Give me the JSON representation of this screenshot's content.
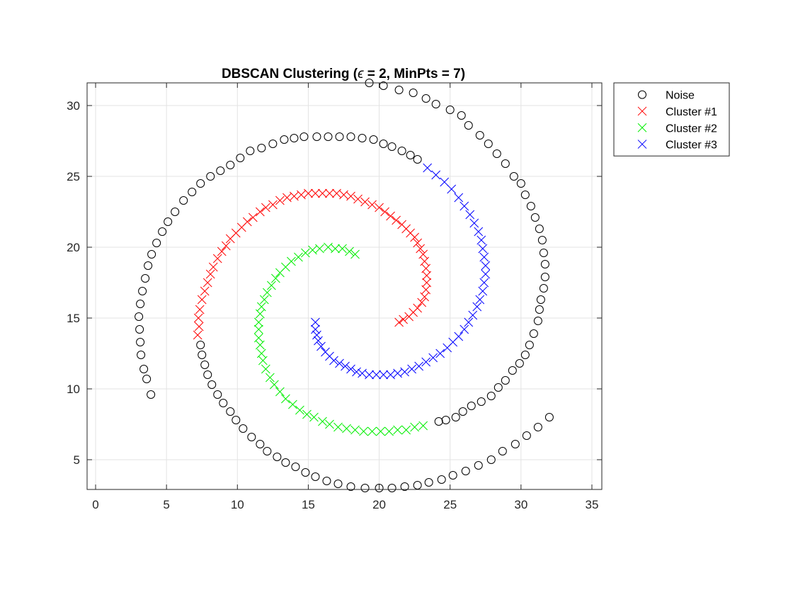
{
  "chart_data": {
    "type": "scatter",
    "title_prefix": "DBSCAN Clustering (",
    "title_symbol": "ϵ",
    "title_suffix": " = 2, MinPts = 7)",
    "xlabel": "",
    "ylabel": "",
    "xlim": [
      -0.6,
      35.7
    ],
    "ylim": [
      2.9,
      31.6
    ],
    "xticks": [
      0,
      5,
      10,
      15,
      20,
      25,
      30,
      35
    ],
    "yticks": [
      5,
      10,
      15,
      20,
      25,
      30
    ],
    "grid": true,
    "legend_position": "outside-top-right",
    "series": [
      {
        "name": "Noise",
        "marker": "circle",
        "color": "#000000",
        "points": [
          [
            3.9,
            9.6
          ],
          [
            3.6,
            10.7
          ],
          [
            3.4,
            11.4
          ],
          [
            3.2,
            12.4
          ],
          [
            3.15,
            13.3
          ],
          [
            3.1,
            14.2
          ],
          [
            3.05,
            15.1
          ],
          [
            3.15,
            16.0
          ],
          [
            3.3,
            16.9
          ],
          [
            3.5,
            17.8
          ],
          [
            3.7,
            18.7
          ],
          [
            3.95,
            19.5
          ],
          [
            4.3,
            20.3
          ],
          [
            4.7,
            21.1
          ],
          [
            5.1,
            21.8
          ],
          [
            5.6,
            22.5
          ],
          [
            6.2,
            23.3
          ],
          [
            6.8,
            23.9
          ],
          [
            7.4,
            24.5
          ],
          [
            8.1,
            25.0
          ],
          [
            8.8,
            25.4
          ],
          [
            9.5,
            25.8
          ],
          [
            10.2,
            26.3
          ],
          [
            10.9,
            26.8
          ],
          [
            11.7,
            27.0
          ],
          [
            12.5,
            27.3
          ],
          [
            13.3,
            27.6
          ],
          [
            14.0,
            27.7
          ],
          [
            14.7,
            27.8
          ],
          [
            15.6,
            27.8
          ],
          [
            16.4,
            27.8
          ],
          [
            17.2,
            27.8
          ],
          [
            18.0,
            27.8
          ],
          [
            18.8,
            27.7
          ],
          [
            19.6,
            27.6
          ],
          [
            20.3,
            27.3
          ],
          [
            20.9,
            27.1
          ],
          [
            21.6,
            26.8
          ],
          [
            22.2,
            26.5
          ],
          [
            22.7,
            26.2
          ],
          [
            19.3,
            31.6
          ],
          [
            20.3,
            31.4
          ],
          [
            21.4,
            31.1
          ],
          [
            22.4,
            30.9
          ],
          [
            23.3,
            30.5
          ],
          [
            24.0,
            30.1
          ],
          [
            25.0,
            29.7
          ],
          [
            25.8,
            29.3
          ],
          [
            26.3,
            28.6
          ],
          [
            27.1,
            27.9
          ],
          [
            27.7,
            27.3
          ],
          [
            28.3,
            26.6
          ],
          [
            28.9,
            25.9
          ],
          [
            29.5,
            25.0
          ],
          [
            30.0,
            24.5
          ],
          [
            30.3,
            23.7
          ],
          [
            30.7,
            22.9
          ],
          [
            31.0,
            22.1
          ],
          [
            31.3,
            21.3
          ],
          [
            31.5,
            20.5
          ],
          [
            31.6,
            19.6
          ],
          [
            31.7,
            18.8
          ],
          [
            31.7,
            17.9
          ],
          [
            31.6,
            17.1
          ],
          [
            31.4,
            16.3
          ],
          [
            31.3,
            15.6
          ],
          [
            31.2,
            14.8
          ],
          [
            30.9,
            13.9
          ],
          [
            30.6,
            13.1
          ],
          [
            30.3,
            12.4
          ],
          [
            29.9,
            11.8
          ],
          [
            29.4,
            11.3
          ],
          [
            28.9,
            10.6
          ],
          [
            28.4,
            10.1
          ],
          [
            27.9,
            9.5
          ],
          [
            27.2,
            9.1
          ],
          [
            26.5,
            8.8
          ],
          [
            25.9,
            8.4
          ],
          [
            25.4,
            8.0
          ],
          [
            24.7,
            7.8
          ],
          [
            24.2,
            7.7
          ],
          [
            7.4,
            13.1
          ],
          [
            7.5,
            12.4
          ],
          [
            7.7,
            11.7
          ],
          [
            7.9,
            11.0
          ],
          [
            8.2,
            10.3
          ],
          [
            8.6,
            9.6
          ],
          [
            9.0,
            9.0
          ],
          [
            9.5,
            8.4
          ],
          [
            9.9,
            7.8
          ],
          [
            10.4,
            7.2
          ],
          [
            11.0,
            6.6
          ],
          [
            11.6,
            6.1
          ],
          [
            12.1,
            5.6
          ],
          [
            12.8,
            5.2
          ],
          [
            13.4,
            4.8
          ],
          [
            14.1,
            4.5
          ],
          [
            14.8,
            4.1
          ],
          [
            15.5,
            3.8
          ],
          [
            16.3,
            3.5
          ],
          [
            17.1,
            3.3
          ],
          [
            18.0,
            3.1
          ],
          [
            19.0,
            3.0
          ],
          [
            20.0,
            3.0
          ],
          [
            20.9,
            3.0
          ],
          [
            21.8,
            3.1
          ],
          [
            22.7,
            3.2
          ],
          [
            23.5,
            3.4
          ],
          [
            24.4,
            3.6
          ],
          [
            25.2,
            3.9
          ],
          [
            26.1,
            4.2
          ],
          [
            27.0,
            4.6
          ],
          [
            27.9,
            5.0
          ],
          [
            28.7,
            5.6
          ],
          [
            29.6,
            6.1
          ],
          [
            30.4,
            6.7
          ],
          [
            31.2,
            7.3
          ],
          [
            32.0,
            8.0
          ]
        ]
      },
      {
        "name": "Cluster #1",
        "marker": "x",
        "color": "#ff0000",
        "points": [
          [
            7.2,
            13.8
          ],
          [
            7.3,
            14.4
          ],
          [
            7.25,
            15.0
          ],
          [
            7.35,
            15.6
          ],
          [
            7.5,
            16.3
          ],
          [
            7.7,
            16.9
          ],
          [
            7.9,
            17.5
          ],
          [
            8.1,
            18.1
          ],
          [
            8.3,
            18.6
          ],
          [
            8.6,
            19.2
          ],
          [
            8.9,
            19.7
          ],
          [
            9.2,
            20.1
          ],
          [
            9.5,
            20.6
          ],
          [
            9.9,
            21.0
          ],
          [
            10.3,
            21.4
          ],
          [
            10.7,
            21.8
          ],
          [
            11.1,
            22.1
          ],
          [
            11.6,
            22.5
          ],
          [
            12.0,
            22.8
          ],
          [
            12.5,
            23.0
          ],
          [
            13.0,
            23.3
          ],
          [
            13.5,
            23.5
          ],
          [
            14.0,
            23.6
          ],
          [
            14.5,
            23.7
          ],
          [
            15.0,
            23.8
          ],
          [
            15.5,
            23.8
          ],
          [
            16.0,
            23.8
          ],
          [
            16.5,
            23.8
          ],
          [
            17.0,
            23.8
          ],
          [
            17.5,
            23.7
          ],
          [
            18.0,
            23.6
          ],
          [
            18.5,
            23.4
          ],
          [
            19.0,
            23.2
          ],
          [
            19.5,
            23.0
          ],
          [
            20.0,
            22.8
          ],
          [
            20.4,
            22.5
          ],
          [
            20.8,
            22.2
          ],
          [
            21.2,
            21.9
          ],
          [
            21.6,
            21.6
          ],
          [
            21.9,
            21.3
          ],
          [
            22.2,
            21.0
          ],
          [
            22.5,
            20.7
          ],
          [
            22.7,
            20.3
          ],
          [
            22.9,
            19.9
          ],
          [
            23.1,
            19.5
          ],
          [
            23.2,
            19.0
          ],
          [
            23.3,
            18.5
          ],
          [
            23.35,
            18.0
          ],
          [
            23.35,
            17.5
          ],
          [
            23.3,
            17.0
          ],
          [
            23.2,
            16.5
          ],
          [
            23.0,
            16.1
          ],
          [
            22.7,
            15.7
          ],
          [
            22.4,
            15.4
          ],
          [
            22.1,
            15.1
          ],
          [
            21.7,
            14.9
          ],
          [
            21.4,
            14.7
          ]
        ]
      },
      {
        "name": "Cluster #2",
        "marker": "x",
        "color": "#00ee00",
        "points": [
          [
            18.3,
            19.5
          ],
          [
            17.9,
            19.7
          ],
          [
            17.4,
            19.9
          ],
          [
            16.9,
            19.9
          ],
          [
            16.4,
            20.0
          ],
          [
            15.8,
            19.9
          ],
          [
            15.3,
            19.8
          ],
          [
            14.8,
            19.6
          ],
          [
            14.3,
            19.3
          ],
          [
            13.8,
            19.0
          ],
          [
            13.4,
            18.6
          ],
          [
            13.0,
            18.2
          ],
          [
            12.7,
            17.8
          ],
          [
            12.4,
            17.3
          ],
          [
            12.1,
            16.8
          ],
          [
            11.9,
            16.3
          ],
          [
            11.7,
            15.8
          ],
          [
            11.6,
            15.3
          ],
          [
            11.5,
            14.7
          ],
          [
            11.5,
            14.2
          ],
          [
            11.5,
            13.6
          ],
          [
            11.6,
            13.1
          ],
          [
            11.7,
            12.5
          ],
          [
            11.8,
            12.0
          ],
          [
            12.0,
            11.4
          ],
          [
            12.3,
            10.8
          ],
          [
            12.6,
            10.3
          ],
          [
            13.0,
            9.8
          ],
          [
            13.4,
            9.3
          ],
          [
            13.9,
            8.9
          ],
          [
            14.4,
            8.5
          ],
          [
            14.9,
            8.2
          ],
          [
            15.4,
            8.0
          ],
          [
            16.0,
            7.7
          ],
          [
            16.5,
            7.5
          ],
          [
            17.1,
            7.3
          ],
          [
            17.7,
            7.2
          ],
          [
            18.3,
            7.1
          ],
          [
            18.9,
            7.0
          ],
          [
            19.5,
            7.0
          ],
          [
            20.1,
            7.0
          ],
          [
            20.7,
            7.0
          ],
          [
            21.3,
            7.1
          ],
          [
            21.9,
            7.1
          ],
          [
            22.5,
            7.3
          ],
          [
            23.1,
            7.4
          ]
        ]
      },
      {
        "name": "Cluster #3",
        "marker": "x",
        "color": "#0000ff",
        "points": [
          [
            15.5,
            14.7
          ],
          [
            15.5,
            14.2
          ],
          [
            15.6,
            13.8
          ],
          [
            15.7,
            13.4
          ],
          [
            15.9,
            13.0
          ],
          [
            16.2,
            12.6
          ],
          [
            16.5,
            12.3
          ],
          [
            16.8,
            12.0
          ],
          [
            17.2,
            11.8
          ],
          [
            17.6,
            11.6
          ],
          [
            18.0,
            11.4
          ],
          [
            18.4,
            11.2
          ],
          [
            18.8,
            11.1
          ],
          [
            19.3,
            11.0
          ],
          [
            19.8,
            11.0
          ],
          [
            20.3,
            11.0
          ],
          [
            20.8,
            11.0
          ],
          [
            21.3,
            11.1
          ],
          [
            21.8,
            11.2
          ],
          [
            22.3,
            11.4
          ],
          [
            22.8,
            11.6
          ],
          [
            23.3,
            11.9
          ],
          [
            23.8,
            12.2
          ],
          [
            24.3,
            12.5
          ],
          [
            24.8,
            12.9
          ],
          [
            25.2,
            13.3
          ],
          [
            25.6,
            13.7
          ],
          [
            26.0,
            14.2
          ],
          [
            26.3,
            14.7
          ],
          [
            26.6,
            15.2
          ],
          [
            26.9,
            15.8
          ],
          [
            27.1,
            16.3
          ],
          [
            27.3,
            16.9
          ],
          [
            27.4,
            17.5
          ],
          [
            27.5,
            18.1
          ],
          [
            27.5,
            18.7
          ],
          [
            27.4,
            19.3
          ],
          [
            27.3,
            19.9
          ],
          [
            27.2,
            20.5
          ],
          [
            27.0,
            21.1
          ],
          [
            26.7,
            21.7
          ],
          [
            26.4,
            22.3
          ],
          [
            26.0,
            22.9
          ],
          [
            25.6,
            23.5
          ],
          [
            25.1,
            24.1
          ],
          [
            24.6,
            24.6
          ],
          [
            24.0,
            25.1
          ],
          [
            23.4,
            25.6
          ]
        ]
      }
    ]
  }
}
